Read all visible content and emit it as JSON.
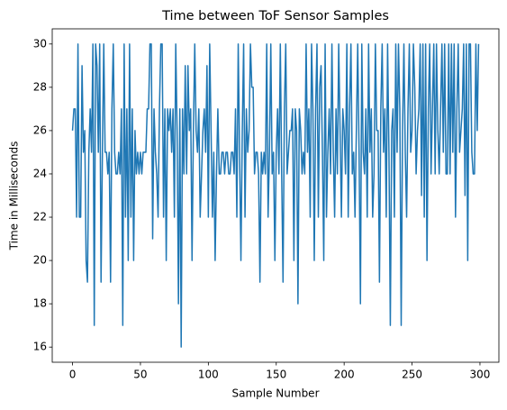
{
  "chart_data": {
    "type": "line",
    "title": "Time between ToF Sensor Samples",
    "x_label": "Sample Number",
    "y_label": "Time in Milliseconds",
    "color": "#1f77b4",
    "x": [
      0,
      1,
      2,
      3,
      4,
      5,
      6,
      7,
      8,
      9,
      10,
      11,
      12,
      13,
      14,
      15,
      16,
      17,
      18,
      19,
      20,
      21,
      22,
      23,
      24,
      25,
      26,
      27,
      28,
      29,
      30,
      31,
      32,
      33,
      34,
      35,
      36,
      37,
      38,
      39,
      40,
      41,
      42,
      43,
      44,
      45,
      46,
      47,
      48,
      49,
      50,
      51,
      52,
      53,
      54,
      55,
      56,
      57,
      58,
      59,
      60,
      61,
      62,
      63,
      64,
      65,
      66,
      67,
      68,
      69,
      70,
      71,
      72,
      73,
      74,
      75,
      76,
      77,
      78,
      79,
      80,
      81,
      82,
      83,
      84,
      85,
      86,
      87,
      88,
      89,
      90,
      91,
      92,
      93,
      94,
      95,
      96,
      97,
      98,
      99,
      100,
      101,
      102,
      103,
      104,
      105,
      106,
      107,
      108,
      109,
      110,
      111,
      112,
      113,
      114,
      115,
      116,
      117,
      118,
      119,
      120,
      121,
      122,
      123,
      124,
      125,
      126,
      127,
      128,
      129,
      130,
      131,
      132,
      133,
      134,
      135,
      136,
      137,
      138,
      139,
      140,
      141,
      142,
      143,
      144,
      145,
      146,
      147,
      148,
      149,
      150,
      151,
      152,
      153,
      154,
      155,
      156,
      157,
      158,
      159,
      160,
      161,
      162,
      163,
      164,
      165,
      166,
      167,
      168,
      169,
      170,
      171,
      172,
      173,
      174,
      175,
      176,
      177,
      178,
      179,
      180,
      181,
      182,
      183,
      184,
      185,
      186,
      187,
      188,
      189,
      190,
      191,
      192,
      193,
      194,
      195,
      196,
      197,
      198,
      199,
      200,
      201,
      202,
      203,
      204,
      205,
      206,
      207,
      208,
      209,
      210,
      211,
      212,
      213,
      214,
      215,
      216,
      217,
      218,
      219,
      220,
      221,
      222,
      223,
      224,
      225,
      226,
      227,
      228,
      229,
      230,
      231,
      232,
      233,
      234,
      235,
      236,
      237,
      238,
      239,
      240,
      241,
      242,
      243,
      244,
      245,
      246,
      247,
      248,
      249,
      250,
      251,
      252,
      253,
      254,
      255,
      256,
      257,
      258,
      259,
      260,
      261,
      262,
      263,
      264,
      265,
      266,
      267,
      268,
      269,
      270,
      271,
      272,
      273,
      274,
      275,
      276,
      277,
      278,
      279,
      280,
      281,
      282,
      283,
      284,
      285,
      286,
      287,
      288,
      289,
      290,
      291,
      292,
      293,
      294,
      295,
      296,
      297,
      298,
      299
    ],
    "values": [
      26,
      27,
      27,
      22,
      30,
      22,
      22,
      29,
      25,
      26,
      20,
      19,
      25,
      27,
      25,
      30,
      17,
      30,
      29,
      25,
      30,
      19,
      25,
      30,
      25,
      25,
      24,
      25,
      19,
      27,
      30,
      25,
      24,
      24,
      25,
      24,
      27,
      17,
      30,
      22,
      27,
      20,
      30,
      22,
      27,
      20,
      26,
      24,
      25,
      24,
      25,
      24,
      25,
      25,
      25,
      27,
      27,
      30,
      30,
      21,
      27,
      25,
      24,
      22,
      27,
      30,
      30,
      22,
      27,
      20,
      27,
      26,
      27,
      25,
      27,
      22,
      30,
      26,
      18,
      27,
      16,
      27,
      24,
      29,
      24,
      29,
      26,
      27,
      20,
      26,
      30,
      26,
      25,
      27,
      22,
      24,
      26,
      27,
      25,
      29,
      22,
      30,
      26,
      22,
      25,
      20,
      24,
      27,
      24,
      24,
      25,
      25,
      24,
      25,
      25,
      24,
      24,
      25,
      25,
      24,
      27,
      22,
      30,
      25,
      20,
      26,
      30,
      22,
      27,
      25,
      26,
      30,
      28,
      28,
      24,
      25,
      25,
      24,
      19,
      25,
      24,
      25,
      24,
      30,
      22,
      25,
      30,
      24,
      25,
      20,
      25,
      27,
      24,
      30,
      24,
      19,
      27,
      30,
      24,
      25,
      26,
      26,
      27,
      20,
      27,
      26,
      18,
      27,
      26,
      24,
      25,
      24,
      30,
      25,
      27,
      22,
      30,
      27,
      20,
      27,
      30,
      22,
      28,
      29,
      25,
      20,
      30,
      22,
      25,
      27,
      24,
      30,
      25,
      22,
      27,
      24,
      30,
      26,
      22,
      27,
      26,
      24,
      30,
      22,
      27,
      30,
      24,
      25,
      22,
      26,
      30,
      25,
      18,
      30,
      25,
      24,
      27,
      22,
      30,
      25,
      27,
      22,
      24,
      30,
      26,
      26,
      19,
      27,
      30,
      25,
      27,
      22,
      30,
      25,
      17,
      26,
      27,
      22,
      30,
      25,
      30,
      27,
      17,
      26,
      30,
      25,
      22,
      27,
      30,
      25,
      26,
      30,
      28,
      24,
      26,
      27,
      30,
      23,
      30,
      22,
      30,
      20,
      27,
      30,
      24,
      27,
      30,
      24,
      30,
      26,
      24,
      27,
      30,
      25,
      30,
      24,
      24,
      30,
      24,
      30,
      25,
      30,
      22,
      27,
      30,
      25,
      26,
      27,
      30,
      23,
      30,
      20,
      30,
      30,
      25,
      24,
      24,
      30,
      26,
      30
    ],
    "xlim": [
      -14.95,
      313.95
    ],
    "xticks": [
      0,
      50,
      100,
      150,
      200,
      250,
      300
    ],
    "ylim": [
      15.3,
      30.7
    ],
    "yticks": [
      16,
      18,
      20,
      22,
      24,
      26,
      28,
      30
    ]
  }
}
